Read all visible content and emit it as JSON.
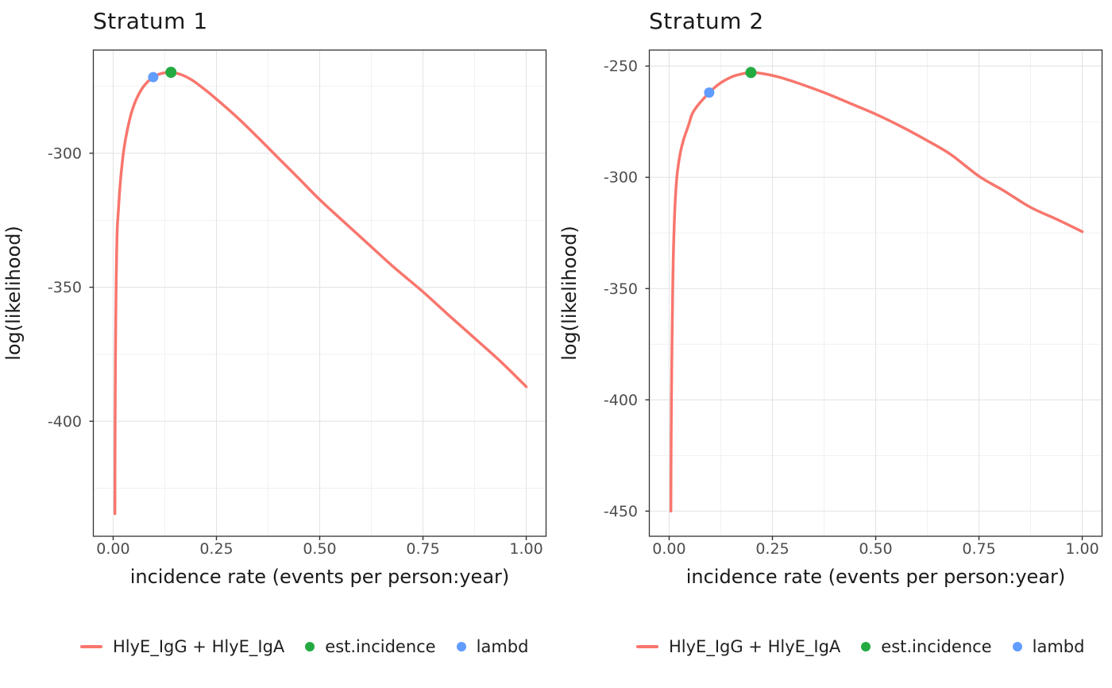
{
  "figure": {
    "x_axis_title": "incidence rate (events per person:year)",
    "y_axis_title": "log(likelihood)"
  },
  "colors": {
    "curve": "#F8766D",
    "est_incidence": "#23AA41",
    "lambda": "#619CFF",
    "grid_major": "#E4E4E4",
    "grid_minor": "#F1F1F1",
    "panel_border": "#333333",
    "panel_bg": "#FFFFFF",
    "tick_mark": "#333333",
    "tick_label": "#4D4D4D",
    "axis_title": "#1A1A1A"
  },
  "legend": {
    "entries": [
      {
        "type": "line",
        "color_key": "curve",
        "label": "HlyE_IgG + HlyE_IgA"
      },
      {
        "type": "point",
        "color_key": "est_incidence",
        "label": "est.incidence"
      },
      {
        "type": "point",
        "color_key": "lambda",
        "label": "lambd"
      }
    ]
  },
  "chart_data": [
    {
      "type": "line",
      "title": "Stratum 1",
      "xlabel": "incidence rate (events per person:year)",
      "ylabel": "log(likelihood)",
      "xlim": [
        0,
        1
      ],
      "x_window": [
        -0.048,
        1.048
      ],
      "y_window": [
        -442.9,
        -261.5
      ],
      "x_ticks": [
        {
          "v": 0,
          "label": "0.00"
        },
        {
          "v": 0.25,
          "label": "0.25"
        },
        {
          "v": 0.5,
          "label": "0.50"
        },
        {
          "v": 0.75,
          "label": "0.75"
        },
        {
          "v": 1,
          "label": "1.00"
        }
      ],
      "x_minor": [
        0.125,
        0.375,
        0.625,
        0.875
      ],
      "y_ticks": [
        {
          "v": -300,
          "label": "-300"
        },
        {
          "v": -350,
          "label": "-350"
        },
        {
          "v": -400,
          "label": "-400"
        }
      ],
      "y_minor": [
        -275,
        -325,
        -375,
        -425
      ],
      "grid": true,
      "legend_position": "bottom",
      "series": [
        {
          "name": "HlyE_IgG + HlyE_IgA",
          "points": [
            [
              0.0042,
              -434.5
            ],
            [
              0.0045,
              -412
            ],
            [
              0.0049,
              -395
            ],
            [
              0.0055,
              -378
            ],
            [
              0.0063,
              -362
            ],
            [
              0.0073,
              -348
            ],
            [
              0.0085,
              -337
            ],
            [
              0.01,
              -328
            ],
            [
              0.0129,
              -320.8
            ],
            [
              0.016,
              -313.5
            ],
            [
              0.02,
              -306.5
            ],
            [
              0.026,
              -298.5
            ],
            [
              0.034,
              -291.5
            ],
            [
              0.045,
              -284.5
            ],
            [
              0.058,
              -279.2
            ],
            [
              0.075,
              -274.8
            ],
            [
              0.097,
              -271.6
            ],
            [
              0.118,
              -270.2
            ],
            [
              0.14,
              -269.8
            ],
            [
              0.165,
              -270.7
            ],
            [
              0.19,
              -272.6
            ],
            [
              0.22,
              -276
            ],
            [
              0.25,
              -279.8
            ],
            [
              0.285,
              -284.5
            ],
            [
              0.32,
              -289.5
            ],
            [
              0.36,
              -295.6
            ],
            [
              0.4,
              -301.8
            ],
            [
              0.45,
              -309.5
            ],
            [
              0.5,
              -317.3
            ],
            [
              0.56,
              -325.8
            ],
            [
              0.62,
              -334.2
            ],
            [
              0.68,
              -342.6
            ],
            [
              0.747,
              -351.3
            ],
            [
              0.81,
              -360.1
            ],
            [
              0.875,
              -369
            ],
            [
              0.94,
              -378
            ],
            [
              1.0,
              -387.1
            ]
          ]
        }
      ],
      "markers": [
        {
          "name": "lambd",
          "color_key": "lambda",
          "x": 0.097,
          "y": -271.6,
          "r": 6.5
        },
        {
          "name": "est.incidence",
          "color_key": "est_incidence",
          "x": 0.14,
          "y": -269.8,
          "r": 7
        }
      ]
    },
    {
      "type": "line",
      "title": "Stratum 2",
      "xlabel": "incidence rate (events per person:year)",
      "ylabel": "log(likelihood)",
      "xlim": [
        0,
        1
      ],
      "x_window": [
        -0.048,
        1.048
      ],
      "y_window": [
        -461.3,
        -242.8
      ],
      "x_ticks": [
        {
          "v": 0,
          "label": "0.00"
        },
        {
          "v": 0.25,
          "label": "0.25"
        },
        {
          "v": 0.5,
          "label": "0.50"
        },
        {
          "v": 0.75,
          "label": "0.75"
        },
        {
          "v": 1,
          "label": "1.00"
        }
      ],
      "x_minor": [
        0.125,
        0.375,
        0.625,
        0.875
      ],
      "y_ticks": [
        {
          "v": -250,
          "label": "-250"
        },
        {
          "v": -300,
          "label": "-300"
        },
        {
          "v": -350,
          "label": "-350"
        },
        {
          "v": -400,
          "label": "-400"
        },
        {
          "v": -450,
          "label": "-450"
        }
      ],
      "y_minor": [
        -275,
        -325,
        -375,
        -425
      ],
      "grid": true,
      "legend_position": "bottom",
      "series": [
        {
          "name": "HlyE_IgG + HlyE_IgA",
          "points": [
            [
              0.0042,
              -450
            ],
            [
              0.0045,
              -432
            ],
            [
              0.0049,
              -416
            ],
            [
              0.0055,
              -400
            ],
            [
              0.0063,
              -384
            ],
            [
              0.0073,
              -368
            ],
            [
              0.0085,
              -352
            ],
            [
              0.01,
              -336
            ],
            [
              0.0129,
              -318
            ],
            [
              0.016,
              -306.5
            ],
            [
              0.02,
              -297.5
            ],
            [
              0.027,
              -289
            ],
            [
              0.035,
              -283
            ],
            [
              0.047,
              -276.5
            ],
            [
              0.056,
              -271.4
            ],
            [
              0.07,
              -267.5
            ],
            [
              0.085,
              -264.3
            ],
            [
              0.097,
              -261.9
            ],
            [
              0.115,
              -258.9
            ],
            [
              0.135,
              -256.4
            ],
            [
              0.16,
              -254.3
            ],
            [
              0.198,
              -252.9
            ],
            [
              0.23,
              -253.5
            ],
            [
              0.265,
              -254.9
            ],
            [
              0.3,
              -256.9
            ],
            [
              0.34,
              -259.5
            ],
            [
              0.39,
              -263
            ],
            [
              0.44,
              -266.9
            ],
            [
              0.5,
              -271.6
            ],
            [
              0.56,
              -277
            ],
            [
              0.62,
              -283
            ],
            [
              0.68,
              -289.5
            ],
            [
              0.75,
              -299.5
            ],
            [
              0.81,
              -306
            ],
            [
              0.875,
              -313.5
            ],
            [
              0.94,
              -319
            ],
            [
              1.0,
              -324.4
            ]
          ]
        }
      ],
      "markers": [
        {
          "name": "lambd",
          "color_key": "lambda",
          "x": 0.097,
          "y": -261.9,
          "r": 6.5
        },
        {
          "name": "est.incidence",
          "color_key": "est_incidence",
          "x": 0.198,
          "y": -252.9,
          "r": 7
        }
      ]
    }
  ]
}
